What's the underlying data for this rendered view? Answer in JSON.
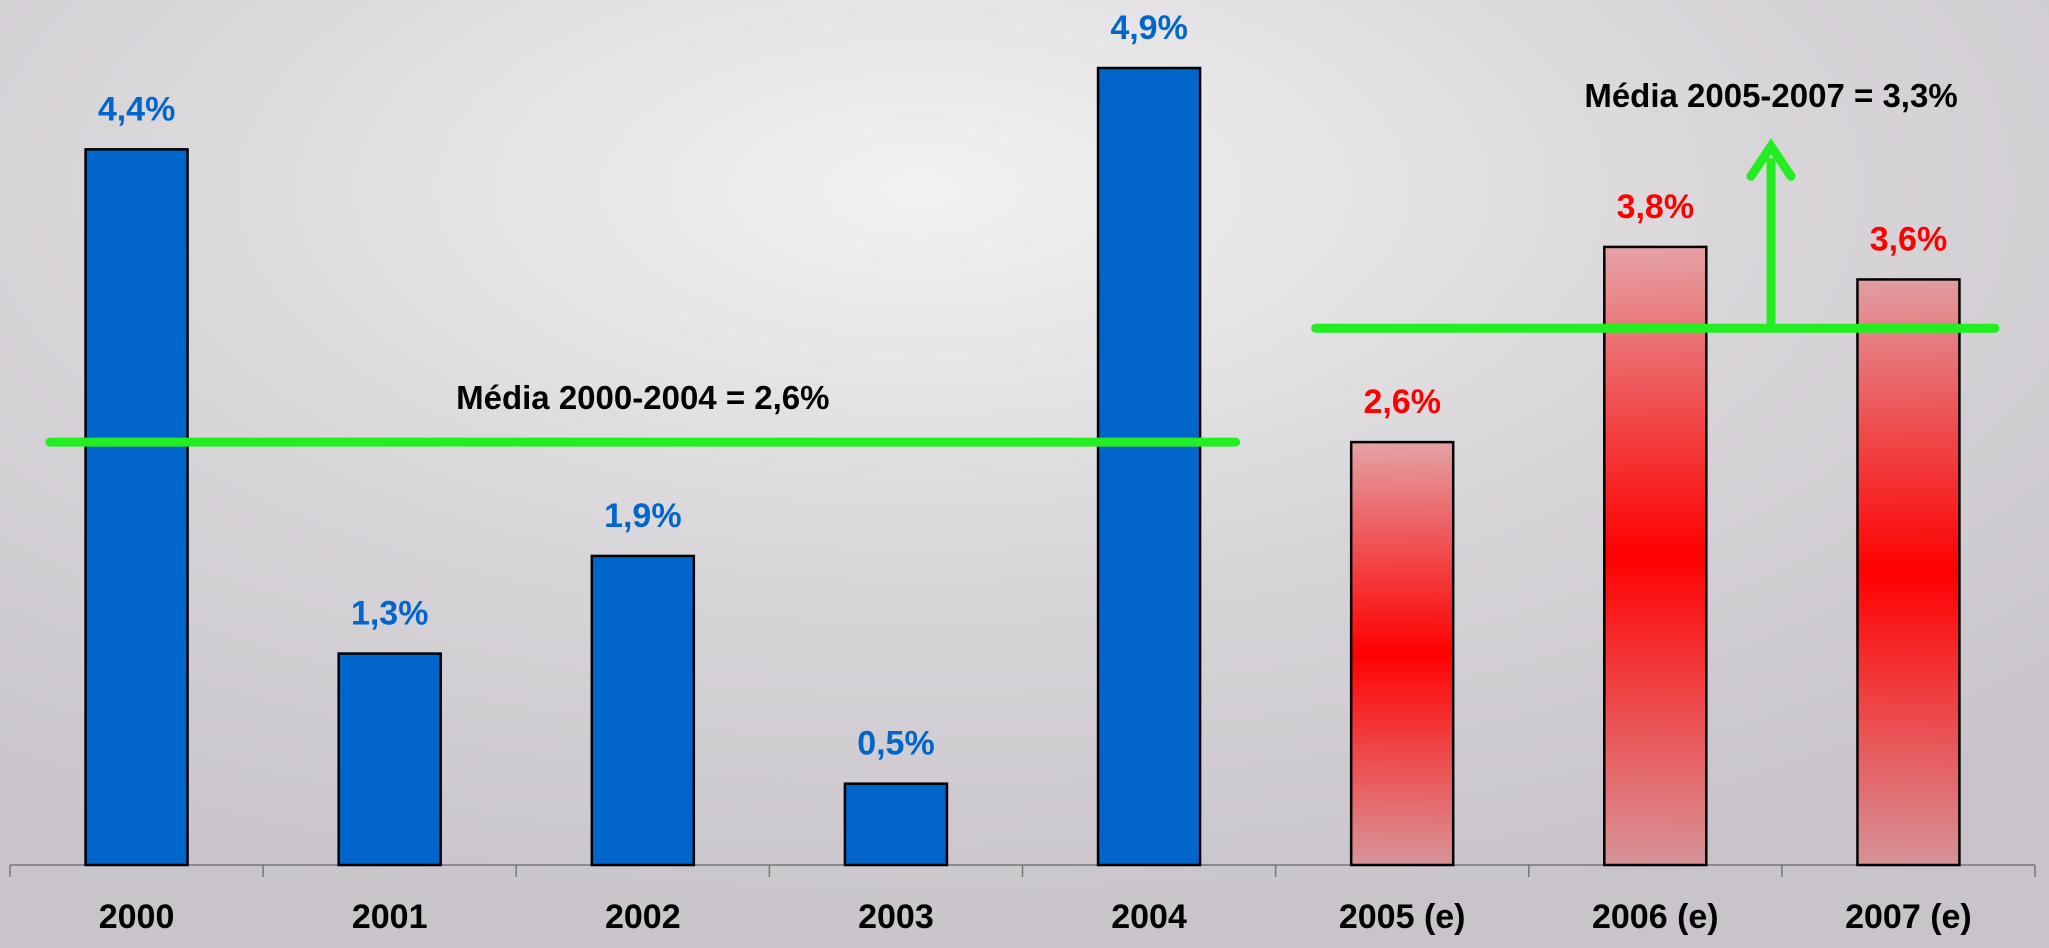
{
  "chart_data": {
    "type": "bar",
    "categories": [
      "2000",
      "2001",
      "2002",
      "2003",
      "2004",
      "2005 (e)",
      "2006 (e)",
      "2007 (e)"
    ],
    "values": [
      4.4,
      1.3,
      1.9,
      0.5,
      4.9,
      2.6,
      3.8,
      3.6
    ],
    "value_labels": [
      "4,4%",
      "1,3%",
      "1,9%",
      "0,5%",
      "4,9%",
      "2,6%",
      "3,8%",
      "3,6%"
    ],
    "estimated": [
      false,
      false,
      false,
      false,
      false,
      true,
      true,
      true
    ],
    "color": "#0066cc",
    "estimated_color": "#ff0000",
    "reference_lines": [
      {
        "label": "Média 2000-2004 = 2,6%",
        "value": 2.6,
        "start": "2000",
        "end": "2004",
        "color": "#22ee22"
      },
      {
        "label": "Média 2005-2007 = 3,3%",
        "value": 3.3,
        "start": "2005 (e)",
        "end": "2007 (e)",
        "color": "#22ee22"
      }
    ]
  }
}
